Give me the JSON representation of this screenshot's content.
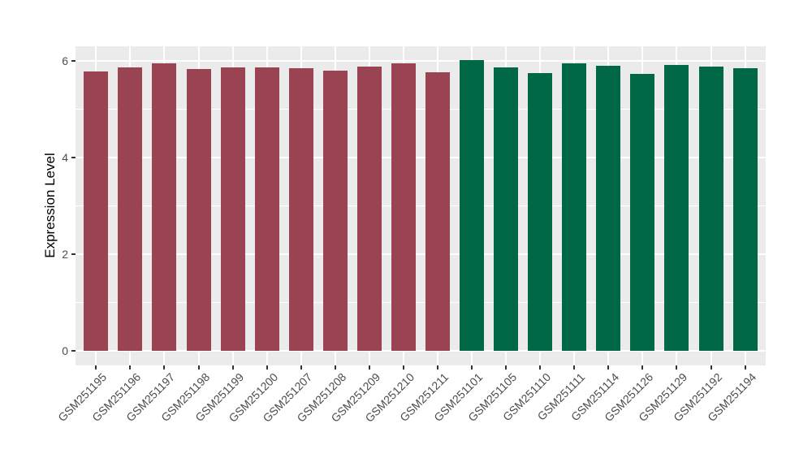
{
  "figure": {
    "background_color": "#FFFFFF",
    "panel_background_color": "#EBEBEB",
    "gridline_color": "#FFFFFF",
    "axis_text_color": "#4D4D4D",
    "axis_tick_color": "#333333",
    "axis_title_color": "#000000"
  },
  "chart_data": {
    "type": "bar",
    "title": "",
    "xlabel": "",
    "ylabel": "Expression Level",
    "categories": [
      "GSM251195",
      "GSM251196",
      "GSM251197",
      "GSM251198",
      "GSM251199",
      "GSM251200",
      "GSM251207",
      "GSM251208",
      "GSM251209",
      "GSM251210",
      "GSM251211",
      "GSM251101",
      "GSM251105",
      "GSM251110",
      "GSM251111",
      "GSM251114",
      "GSM251126",
      "GSM251129",
      "GSM251192",
      "GSM251194"
    ],
    "values": [
      5.79,
      5.88,
      5.95,
      5.84,
      5.87,
      5.88,
      5.85,
      5.81,
      5.89,
      5.96,
      5.77,
      6.02,
      5.88,
      5.76,
      5.95,
      5.91,
      5.74,
      5.92,
      5.89,
      5.86
    ],
    "bar_colors": [
      "#9A4352",
      "#9A4352",
      "#9A4352",
      "#9A4352",
      "#9A4352",
      "#9A4352",
      "#9A4352",
      "#9A4352",
      "#9A4352",
      "#9A4352",
      "#9A4352",
      "#006747",
      "#006747",
      "#006747",
      "#006747",
      "#006747",
      "#006747",
      "#006747",
      "#006747",
      "#006747"
    ],
    "groups": [
      {
        "color": "#9A4352",
        "count": 11
      },
      {
        "color": "#006747",
        "count": 9
      }
    ],
    "yticks": [
      0,
      2,
      4,
      6
    ],
    "yticks_minor": [
      1,
      3,
      5
    ],
    "ylim": [
      -0.3,
      6.32
    ],
    "grid": "major-and-minor-horizontal, major-vertical-at-categories",
    "legend_position": "none"
  }
}
